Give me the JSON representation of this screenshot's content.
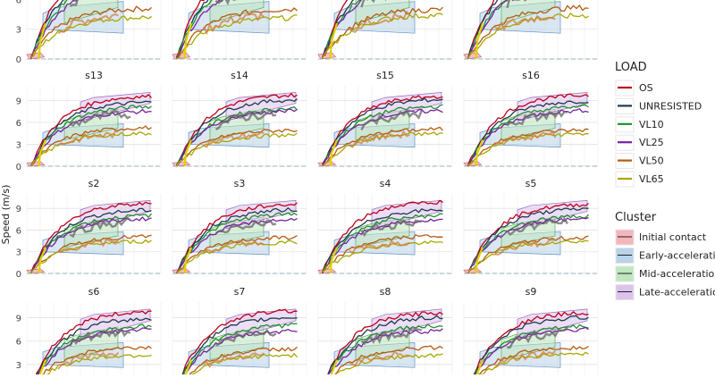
{
  "figure": {
    "ylabel": "Speed (m/s)"
  },
  "panel_titles": [
    "",
    "",
    "",
    "",
    "s13",
    "s14",
    "s15",
    "s16",
    "s2",
    "s3",
    "s4",
    "s5",
    "s6",
    "s7",
    "s8",
    "s9"
  ],
  "legend": {
    "load_title": "LOAD",
    "load_items": [
      {
        "label": "OS",
        "color": "#c0001a"
      },
      {
        "label": "UNRESISTED",
        "color": "#1f3a4d"
      },
      {
        "label": "VL10",
        "color": "#1f8f2f"
      },
      {
        "label": "VL25",
        "color": "#7a1fa0"
      },
      {
        "label": "VL50",
        "color": "#b85a10"
      },
      {
        "label": "VL65",
        "color": "#a8a800"
      }
    ],
    "cluster_title": "Cluster",
    "cluster_items": [
      {
        "label": "Initial contact",
        "fill": "#f4b6bb",
        "color": "#d06a74"
      },
      {
        "label": "Early-acceleration",
        "fill": "#b9d3ea",
        "color": "#5f8fc0"
      },
      {
        "label": "Mid-acceleration",
        "fill": "#bfe6bf",
        "color": "#5aaa5a"
      },
      {
        "label": "Late-acceleration",
        "fill": "#dcc3ec",
        "color": "#9a6abf"
      }
    ]
  },
  "chart_data": {
    "type": "line",
    "ylabel": "Speed (m/s)",
    "yticks": [
      0,
      3,
      6,
      9
    ],
    "ylim": [
      0,
      11
    ],
    "panels": [
      "",
      "",
      "",
      "",
      "s13",
      "s14",
      "s15",
      "s16",
      "s2",
      "s3",
      "s4",
      "s5",
      "s6",
      "s7",
      "s8",
      "s9"
    ],
    "series": [
      {
        "name": "OS",
        "final_speed": 9.9
      },
      {
        "name": "UNRESISTED",
        "final_speed": 9.1
      },
      {
        "name": "VL10",
        "final_speed": 8.2
      },
      {
        "name": "VL25",
        "final_speed": 7.6
      },
      {
        "name": "VL50",
        "final_speed": 5.2
      },
      {
        "name": "VL65",
        "final_speed": 4.4
      }
    ]
  }
}
